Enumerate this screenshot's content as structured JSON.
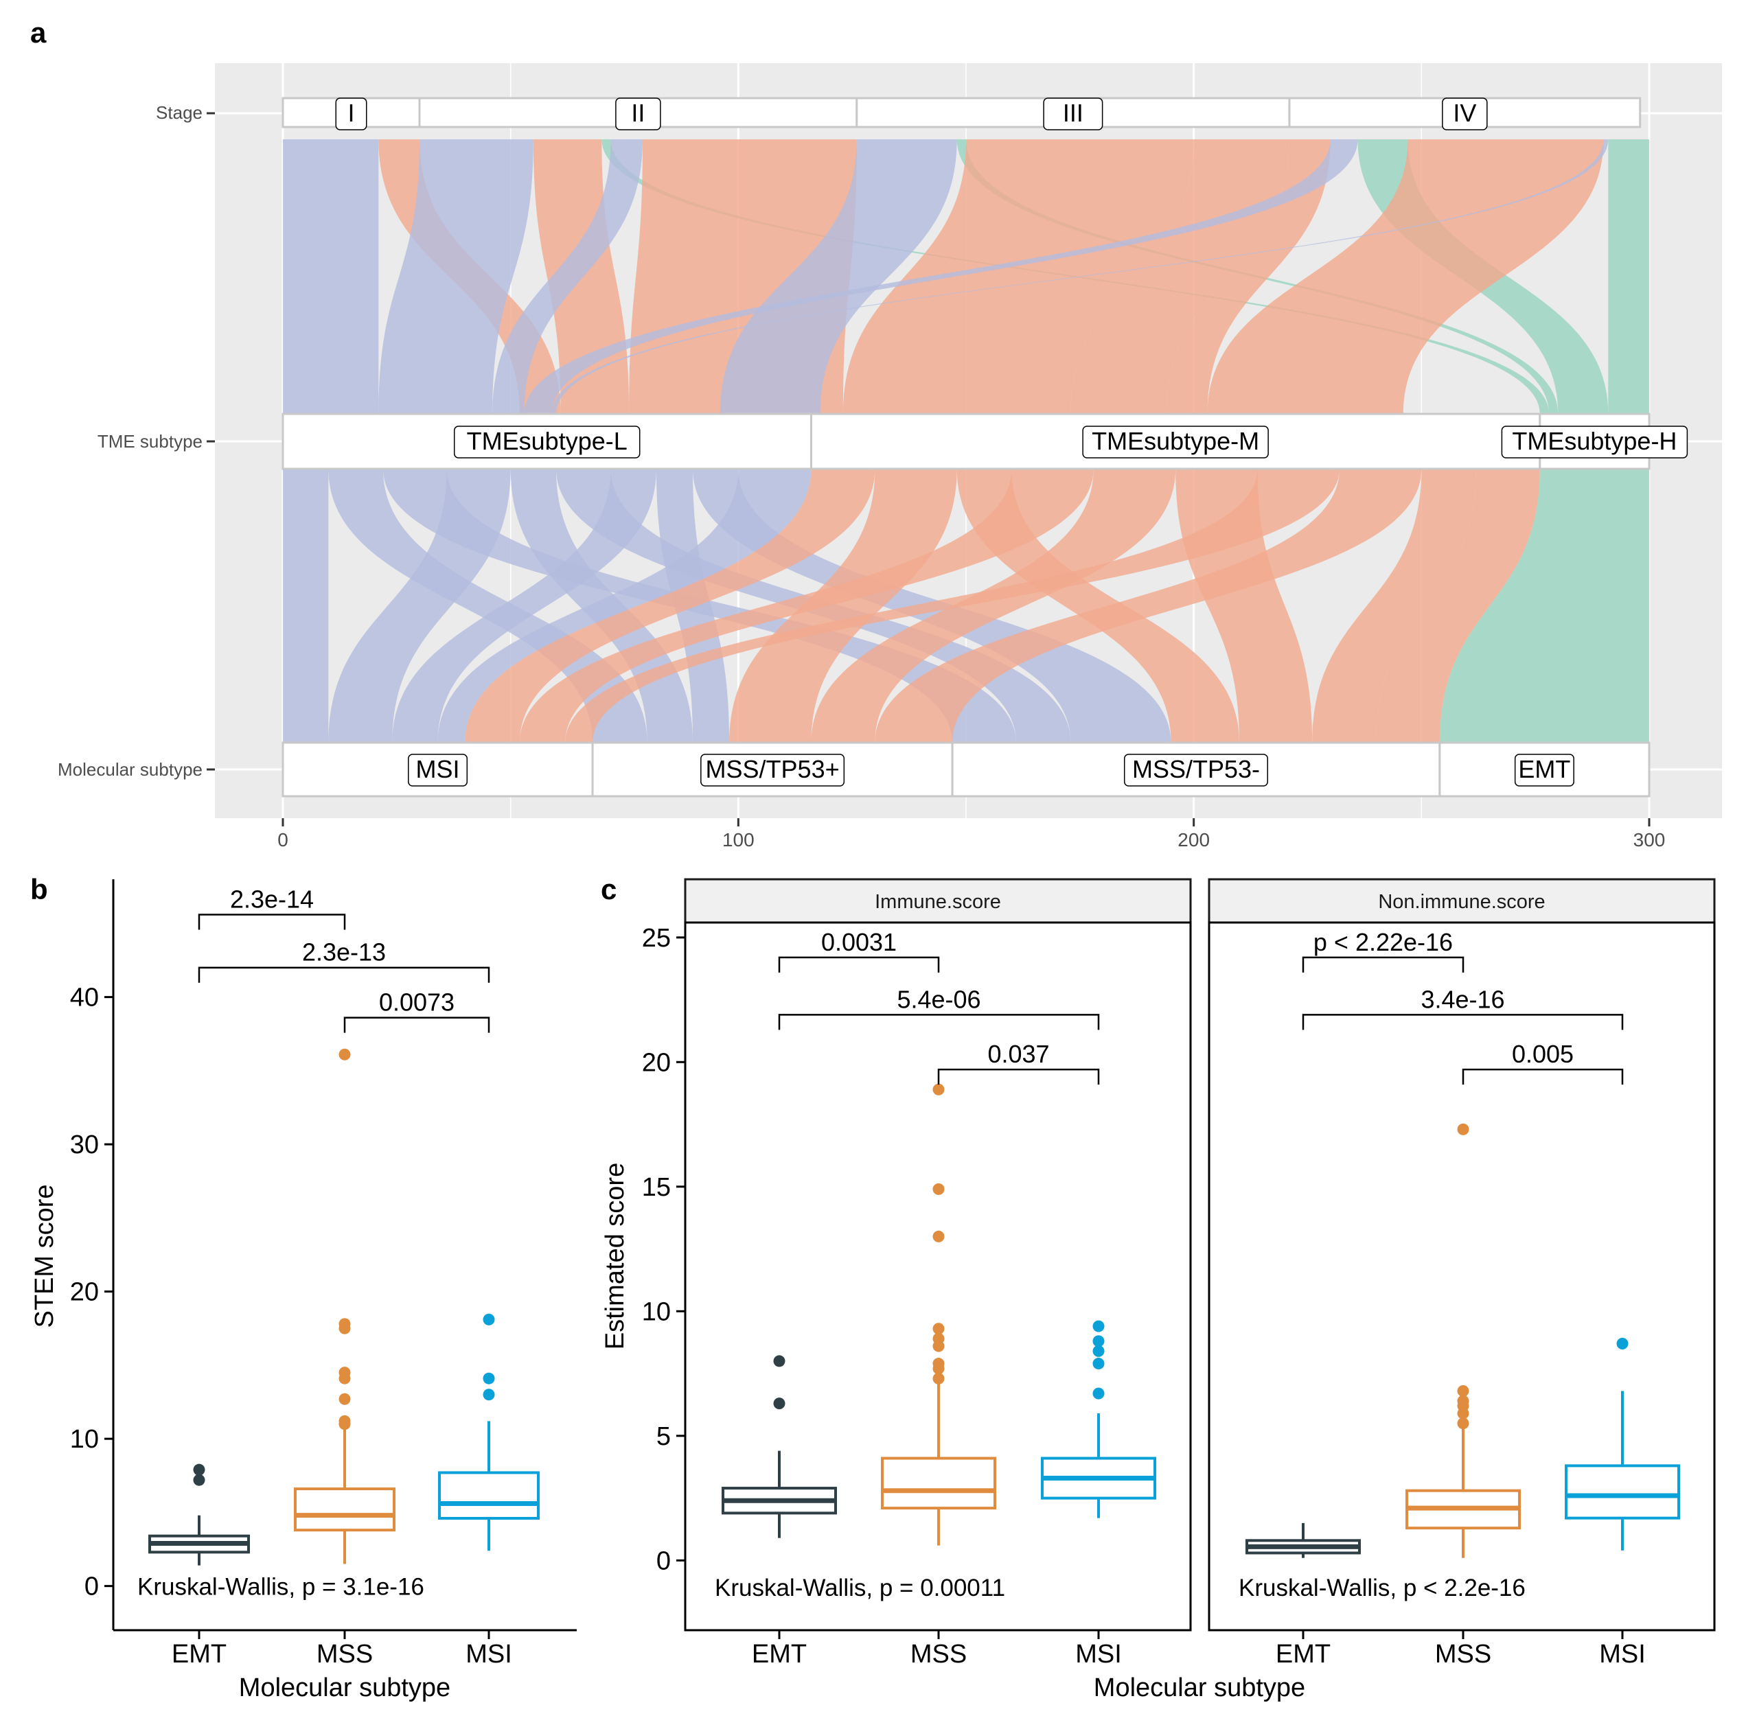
{
  "panels": {
    "a": "a",
    "b": "b",
    "c": "c"
  },
  "colors": {
    "blue": "#b3bcde",
    "orange": "#f2aa8f",
    "green": "#98d4c0",
    "emt": "#2f3f46",
    "mss": "#e08c3e",
    "msi": "#0aa0d8",
    "panel_bg": "#ebebeb"
  },
  "chart_data": [
    {
      "type": "alluvial",
      "panel": "a",
      "axes": [
        "Stage",
        "TME subtype",
        "Molecular subtype"
      ],
      "x_ticks": [
        "0",
        "100",
        "200",
        "300"
      ],
      "xlim": [
        0,
        300
      ],
      "strata": {
        "stage": [
          {
            "label": "I",
            "start": 0,
            "end": 30
          },
          {
            "label": "II",
            "start": 30,
            "end": 126
          },
          {
            "label": "III",
            "start": 126,
            "end": 221
          },
          {
            "label": "IV",
            "start": 221,
            "end": 298
          }
        ],
        "tme": [
          {
            "label": "TMEsubtype-L",
            "start": 0,
            "end": 116
          },
          {
            "label": "TMEsubtype-M",
            "start": 116,
            "end": 276
          },
          {
            "label": "TMEsubtype-H",
            "start": 276,
            "end": 300
          }
        ],
        "molecular": [
          {
            "label": "MSI",
            "start": 0,
            "end": 68
          },
          {
            "label": "MSS/TP53+",
            "start": 68,
            "end": 147
          },
          {
            "label": "MSS/TP53-",
            "start": 147,
            "end": 254
          },
          {
            "label": "EMT",
            "start": 254,
            "end": 300
          }
        ]
      },
      "fill_by": "TME subtype",
      "fill_colors": {
        "TMEsubtype-L": "#b3bcde",
        "TMEsubtype-M": "#f2aa8f",
        "TMEsubtype-H": "#98d4c0"
      }
    },
    {
      "type": "boxplot",
      "panel": "b",
      "ylabel": "STEM score",
      "xlabel": "Molecular subtype",
      "categories": [
        "EMT",
        "MSS",
        "MSI"
      ],
      "ylim": [
        -3,
        48
      ],
      "y_ticks": [
        0,
        10,
        20,
        30,
        40
      ],
      "boxes": [
        {
          "category": "EMT",
          "whisker_low": 1.4,
          "q1": 2.3,
          "median": 2.9,
          "q3": 3.4,
          "whisker_high": 4.8,
          "outliers": [
            7.2,
            7.9
          ]
        },
        {
          "category": "MSS",
          "whisker_low": 1.5,
          "q1": 3.8,
          "median": 4.8,
          "q3": 6.6,
          "whisker_high": 10.7,
          "outliers": [
            11.0,
            11.2,
            12.7,
            14.1,
            14.5,
            17.5,
            17.8,
            36.1
          ]
        },
        {
          "category": "MSI",
          "whisker_low": 2.4,
          "q1": 4.6,
          "median": 5.6,
          "q3": 7.7,
          "whisker_high": 11.2,
          "outliers": [
            13.0,
            14.1,
            18.1
          ]
        }
      ],
      "comparisons": [
        {
          "pair": [
            "EMT",
            "MSS"
          ],
          "label": "2.3e-14",
          "y": 45.6
        },
        {
          "pair": [
            "EMT",
            "MSI"
          ],
          "label": "2.3e-13",
          "y": 42.0
        },
        {
          "pair": [
            "MSS",
            "MSI"
          ],
          "label": "0.0073",
          "y": 38.6
        }
      ],
      "kruskal_label": "Kruskal-Wallis, p = 3.1e-16"
    },
    {
      "type": "boxplot",
      "panel": "c",
      "facet": "Immune.score",
      "ylabel": "Estimated score",
      "xlabel": "Molecular subtype",
      "categories": [
        "EMT",
        "MSS",
        "MSI"
      ],
      "ylim": [
        -2.8,
        25.6
      ],
      "y_ticks": [
        0,
        5,
        10,
        15,
        20,
        25
      ],
      "boxes": [
        {
          "category": "EMT",
          "whisker_low": 0.9,
          "q1": 1.9,
          "median": 2.4,
          "q3": 2.9,
          "whisker_high": 4.4,
          "outliers": [
            6.3,
            8.0
          ]
        },
        {
          "category": "MSS",
          "whisker_low": 0.6,
          "q1": 2.1,
          "median": 2.8,
          "q3": 4.1,
          "whisker_high": 7.1,
          "outliers": [
            7.3,
            7.7,
            7.9,
            8.6,
            8.9,
            9.3,
            13.0,
            14.9,
            18.9
          ]
        },
        {
          "category": "MSI",
          "whisker_low": 1.7,
          "q1": 2.5,
          "median": 3.3,
          "q3": 4.1,
          "whisker_high": 5.9,
          "outliers": [
            6.7,
            7.9,
            8.4,
            8.8,
            9.4
          ]
        }
      ],
      "comparisons": [
        {
          "pair": [
            "EMT",
            "MSS"
          ],
          "label": "0.0031",
          "y": 24.2
        },
        {
          "pair": [
            "EMT",
            "MSI"
          ],
          "label": "5.4e-06",
          "y": 21.9
        },
        {
          "pair": [
            "MSS",
            "MSI"
          ],
          "label": "0.037",
          "y": 19.7
        }
      ],
      "kruskal_label": "Kruskal-Wallis, p = 0.00011"
    },
    {
      "type": "boxplot",
      "panel": "c",
      "facet": "Non.immune.score",
      "ylabel": "Estimated score",
      "xlabel": "Molecular subtype",
      "categories": [
        "EMT",
        "MSS",
        "MSI"
      ],
      "ylim": [
        -2.8,
        25.6
      ],
      "y_ticks": [
        0,
        5,
        10,
        15,
        20,
        25
      ],
      "boxes": [
        {
          "category": "EMT",
          "whisker_low": 0.1,
          "q1": 0.3,
          "median": 0.55,
          "q3": 0.8,
          "whisker_high": 1.5,
          "outliers": []
        },
        {
          "category": "MSS",
          "whisker_low": 0.1,
          "q1": 1.3,
          "median": 2.1,
          "q3": 2.8,
          "whisker_high": 5.3,
          "outliers": [
            5.5,
            5.9,
            6.2,
            6.4,
            6.8,
            17.3
          ]
        },
        {
          "category": "MSI",
          "whisker_low": 0.4,
          "q1": 1.7,
          "median": 2.6,
          "q3": 3.8,
          "whisker_high": 6.8,
          "outliers": [
            8.7
          ]
        }
      ],
      "comparisons": [
        {
          "pair": [
            "EMT",
            "MSS"
          ],
          "label": "p < 2.22e-16",
          "y": 24.2
        },
        {
          "pair": [
            "EMT",
            "MSI"
          ],
          "label": "3.4e-16",
          "y": 21.9
        },
        {
          "pair": [
            "MSS",
            "MSI"
          ],
          "label": "0.005",
          "y": 19.7
        }
      ],
      "kruskal_label": "Kruskal-Wallis, p < 2.2e-16"
    }
  ]
}
